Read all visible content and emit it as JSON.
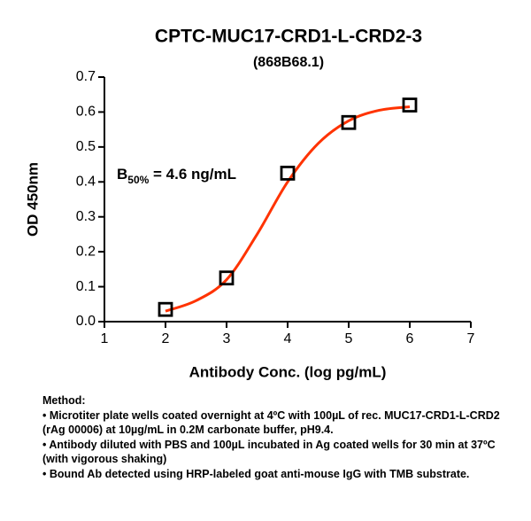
{
  "chart_data": {
    "type": "scatter",
    "title": "CPTC-MUC17-CRD1-L-CRD2-3",
    "subtitle": "(868B68.1)",
    "x_label": "Antibody Conc. (log pg/mL)",
    "y_label": "OD 450nm",
    "annotation": {
      "text": "B",
      "subscript": "50%",
      "rest": " = 4.6 ng/mL"
    },
    "series": [
      {
        "name": "Data",
        "color": "#000000",
        "marker": "square",
        "x": [
          2,
          3,
          4,
          5,
          6
        ],
        "values": [
          0.035,
          0.125,
          0.425,
          0.57,
          0.62
        ]
      },
      {
        "name": "Fit",
        "color": "#ff3300",
        "marker": "line",
        "x": [
          2,
          2.5,
          3,
          3.5,
          4,
          4.5,
          5,
          5.5,
          6
        ],
        "values": [
          0.03,
          0.06,
          0.12,
          0.25,
          0.4,
          0.51,
          0.575,
          0.605,
          0.615
        ]
      }
    ],
    "xlim": [
      1,
      7
    ],
    "xticks": [
      1,
      2,
      3,
      4,
      5,
      6,
      7
    ],
    "ylim": [
      0,
      0.7
    ],
    "yticks": [
      {
        "value": 0,
        "label": "0.0"
      },
      0.1,
      0.2,
      0.3,
      0.4,
      0.5,
      0.6,
      0.7
    ]
  },
  "method": {
    "heading": "Method:",
    "items": [
      "• Microtiter plate wells coated overnight at 4ºC  with 100µL of rec. MUC17-CRD1-L-CRD2 (rAg 00006) at 10µg/mL in 0.2M carbonate buffer, pH9.4.",
      "• Antibody diluted with PBS and 100µL incubated in Ag coated wells for 30 min at 37ºC (with vigorous shaking)",
      "• Bound Ab detected using HRP-labeled goat anti-mouse IgG with TMB substrate."
    ]
  }
}
